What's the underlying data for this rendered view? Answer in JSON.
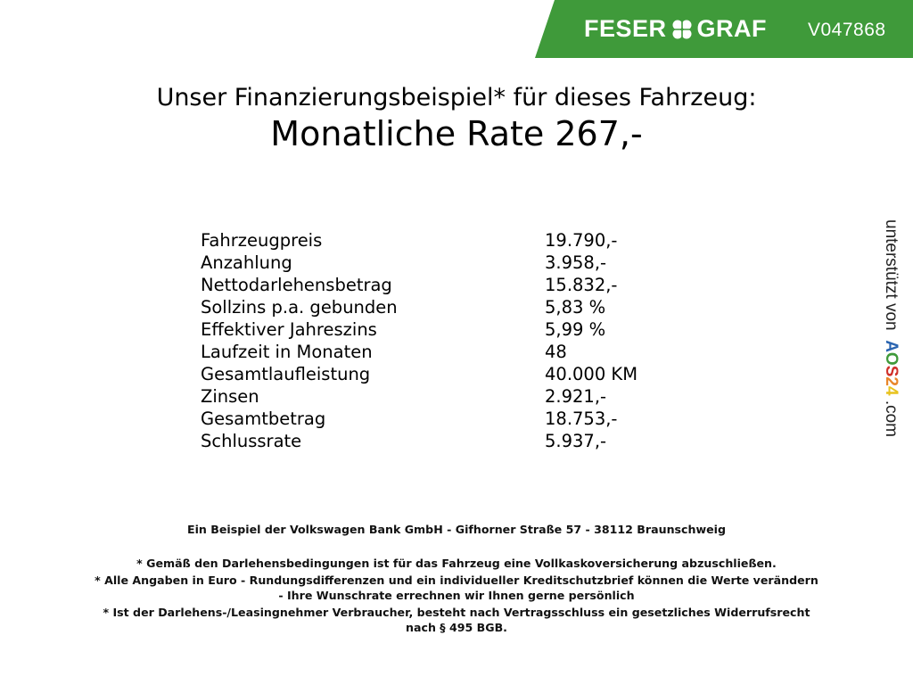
{
  "header": {
    "brand": "FESER GRAF",
    "brand_left": "FESER",
    "brand_right": "GRAF",
    "vehicle_id": "V047868",
    "brand_color": "#3f9a3a",
    "logo_icon": "cloverleaf-icon"
  },
  "title": "Unser Finanzierungsbeispiel* für dieses Fahrzeug:",
  "monthly_rate": "Monatliche Rate 267,-",
  "finance_rows": [
    {
      "label": "Fahrzeugpreis",
      "value": "19.790,-"
    },
    {
      "label": "Anzahlung",
      "value": "3.958,-"
    },
    {
      "label": "Nettodarlehensbetrag",
      "value": "15.832,-"
    },
    {
      "label": "Sollzins p.a. gebunden",
      "value": "5,83 %"
    },
    {
      "label": "Effektiver Jahreszins",
      "value": "5,99 %"
    },
    {
      "label": "Laufzeit in Monaten",
      "value": "48"
    },
    {
      "label": "Gesamtlaufleistung",
      "value": "40.000 KM"
    },
    {
      "label": "Zinsen",
      "value": "2.921,-"
    },
    {
      "label": "Gesamtbetrag",
      "value": "18.753,-"
    },
    {
      "label": "Schlussrate",
      "value": "5.937,-"
    }
  ],
  "sidebar": {
    "supported_by": "unterstützt von",
    "logo": "AOS24",
    "logo_colors": [
      "#2a64b0",
      "#3f9a3a",
      "#d0302a",
      "#e8862a",
      "#e8c31e"
    ],
    "domain_suffix": ".com"
  },
  "footer": {
    "bank": "Ein Beispiel der Volkswagen Bank GmbH - Gifhorner Straße 57 - 38112 Braunschweig",
    "notes": [
      "* Gemäß den Darlehensbedingungen ist für das Fahrzeug eine Vollkaskoversicherung abzuschließen.",
      "* Alle Angaben in Euro - Rundungsdifferenzen und ein individueller Kreditschutzbrief können die Werte verändern",
      "- Ihre Wunschrate errechnen wir Ihnen gerne persönlich",
      "* Ist der Darlehens-/Leasingnehmer Verbraucher, besteht nach Vertragsschluss ein gesetzliches Widerrufsrecht",
      "nach § 495 BGB."
    ]
  }
}
